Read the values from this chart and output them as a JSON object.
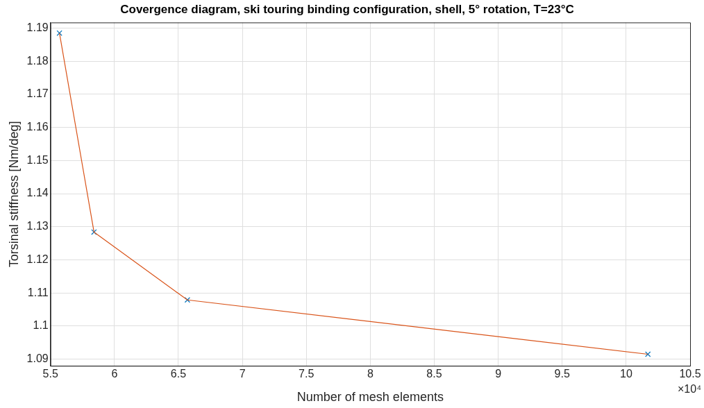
{
  "chart_data": {
    "type": "line",
    "title": "Covergence diagram, ski touring binding configuration, shell, 5° rotation, T=23°C",
    "xlabel": "Number of mesh elements",
    "ylabel": "Torsinal stiffness [Nm/deg]",
    "x": [
      5.57,
      5.84,
      6.57,
      10.17
    ],
    "series": [
      {
        "type": "line",
        "color": "#d95319",
        "marker": "none",
        "values": [
          1.1885,
          1.1284,
          1.1079,
          1.0915
        ]
      },
      {
        "type": "scatter",
        "color": "#0072bd",
        "marker": "cross",
        "values": [
          1.1885,
          1.1284,
          1.1079,
          1.0915
        ]
      }
    ],
    "xlim": [
      5.5,
      10.5
    ],
    "xticks": [
      5.5,
      6,
      6.5,
      7,
      7.5,
      8,
      8.5,
      9,
      9.5,
      10,
      10.5
    ],
    "ylim": [
      1.088,
      1.1917
    ],
    "yticks": [
      1.09,
      1.1,
      1.11,
      1.12,
      1.13,
      1.14,
      1.15,
      1.16,
      1.17,
      1.18,
      1.19
    ],
    "annotations": [
      "×10⁴"
    ],
    "grid": true,
    "legend": false
  }
}
